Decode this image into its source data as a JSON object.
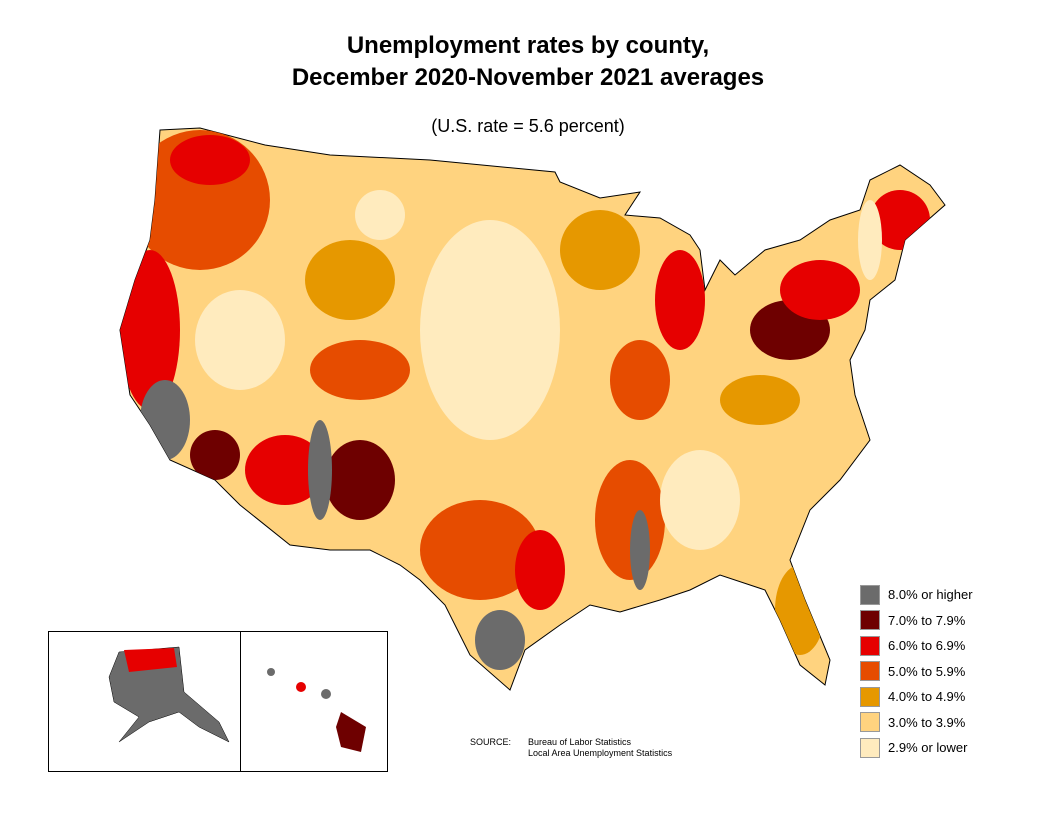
{
  "title": {
    "line1": "Unemployment rates by county,",
    "line2": "December 2020-November 2021 averages"
  },
  "subtitle": "(U.S. rate = 5.6 percent)",
  "legend": [
    {
      "label": "8.0% or higher",
      "color": "#6b6b6b"
    },
    {
      "label": "7.0% to 7.9%",
      "color": "#6e0000"
    },
    {
      "label": "6.0% to 6.9%",
      "color": "#e60000"
    },
    {
      "label": "5.0% to 5.9%",
      "color": "#e64c00"
    },
    {
      "label": "4.0% to 4.9%",
      "color": "#e69800"
    },
    {
      "label": "3.0% to 3.9%",
      "color": "#ffd37f"
    },
    {
      "label": "2.9% or lower",
      "color": "#ffebbe"
    }
  ],
  "source": {
    "label": "SOURCE:",
    "line1": "Bureau of Labor Statistics",
    "line2": "Local Area Unemployment Statistics"
  },
  "insets": [
    "Alaska",
    "Hawaii"
  ]
}
